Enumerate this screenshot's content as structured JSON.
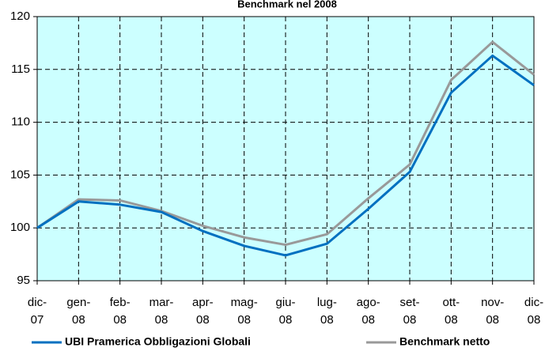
{
  "chart_data": {
    "type": "line",
    "title": "Benchmark nel 2008",
    "categories": [
      "dic-\n07",
      "gen-\n08",
      "feb-\n08",
      "mar-\n08",
      "apr-\n08",
      "mag-\n08",
      "giu-\n08",
      "lug-\n08",
      "ago-\n08",
      "set-\n08",
      "ott-\n08",
      "nov-\n08",
      "dic-\n08"
    ],
    "series": [
      {
        "name": "UBI Pramerica Obbligazioni Globali",
        "color": "#0070c0",
        "values": [
          100,
          102.5,
          102.2,
          101.5,
          99.7,
          98.3,
          97.4,
          98.5,
          101.8,
          105.3,
          112.8,
          116.3,
          113.5
        ]
      },
      {
        "name": "Benchmark netto",
        "color": "#999999",
        "values": [
          100,
          102.7,
          102.6,
          101.6,
          100.2,
          99.1,
          98.4,
          99.4,
          102.8,
          106.0,
          114.0,
          117.6,
          114.5
        ]
      }
    ],
    "ylim": [
      95,
      120
    ],
    "yticks": [
      95,
      100,
      105,
      110,
      115,
      120
    ],
    "grid": true,
    "background": "#ccffff"
  }
}
